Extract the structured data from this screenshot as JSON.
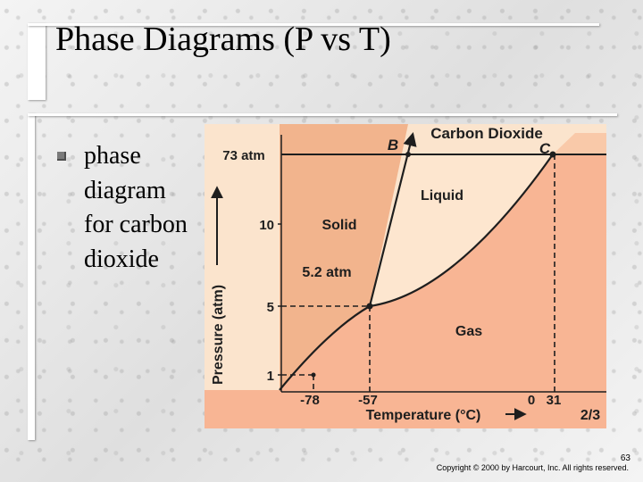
{
  "slide": {
    "title": "Phase Diagrams (P vs T)",
    "bullet": "phase diagram for carbon dioxide",
    "page_number": "63",
    "copyright": "Copyright © 2000 by Harcourt, Inc. All rights reserved."
  },
  "diagram": {
    "header": "Carbon Dioxide",
    "y_axis_label": "Pressure (atm)",
    "x_axis_label": "Temperature (°C)",
    "y_ticks": [
      "73 atm",
      "10",
      "5",
      "1"
    ],
    "x_ticks": [
      "-78",
      "-57",
      "0",
      "31"
    ],
    "region_labels": {
      "solid": "Solid",
      "liquid": "Liquid",
      "gas": "Gas"
    },
    "triple_point_label": "5.2 atm",
    "point_labels": {
      "b": "B",
      "c": "C"
    },
    "page_fraction": "2/3",
    "colors": {
      "panel": "#fbe4cd",
      "solid": "#f2b48d",
      "liquid": "#fde6cf",
      "gas": "#f8b594",
      "supercritical": "#f9c9a9",
      "lines": "#1e1e1e"
    }
  }
}
